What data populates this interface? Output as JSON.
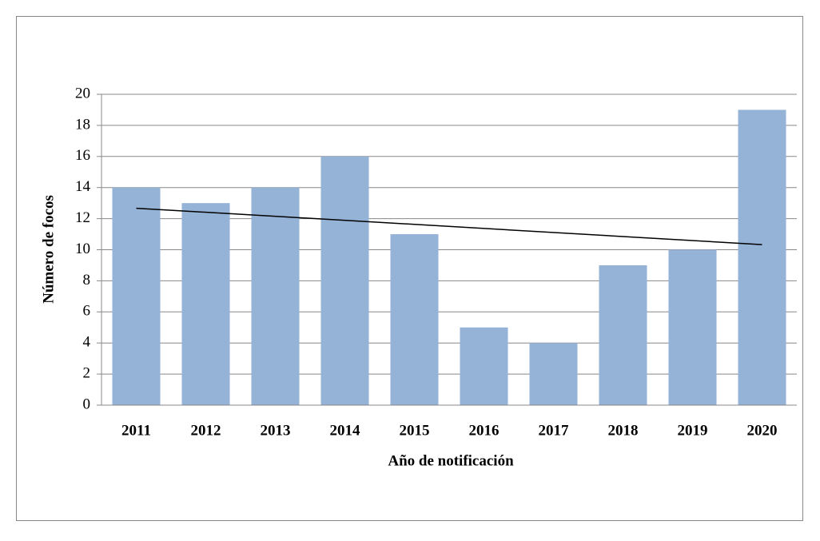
{
  "chart_data": {
    "type": "bar",
    "xlabel": "Año de notificación",
    "ylabel": "Número de focos",
    "categories": [
      "2011",
      "2012",
      "2013",
      "2014",
      "2015",
      "2016",
      "2017",
      "2018",
      "2019",
      "2020"
    ],
    "values": [
      14,
      13,
      14,
      16,
      11,
      5,
      4,
      9,
      10,
      19
    ],
    "color": "#95b3d7",
    "ylim": [
      0,
      20
    ],
    "yticks": [
      0,
      2,
      4,
      6,
      8,
      10,
      12,
      14,
      16,
      18,
      20
    ],
    "grid": true,
    "trendline": {
      "type": "linear",
      "color": "#000000",
      "values": [
        12.67,
        10.33
      ]
    }
  }
}
